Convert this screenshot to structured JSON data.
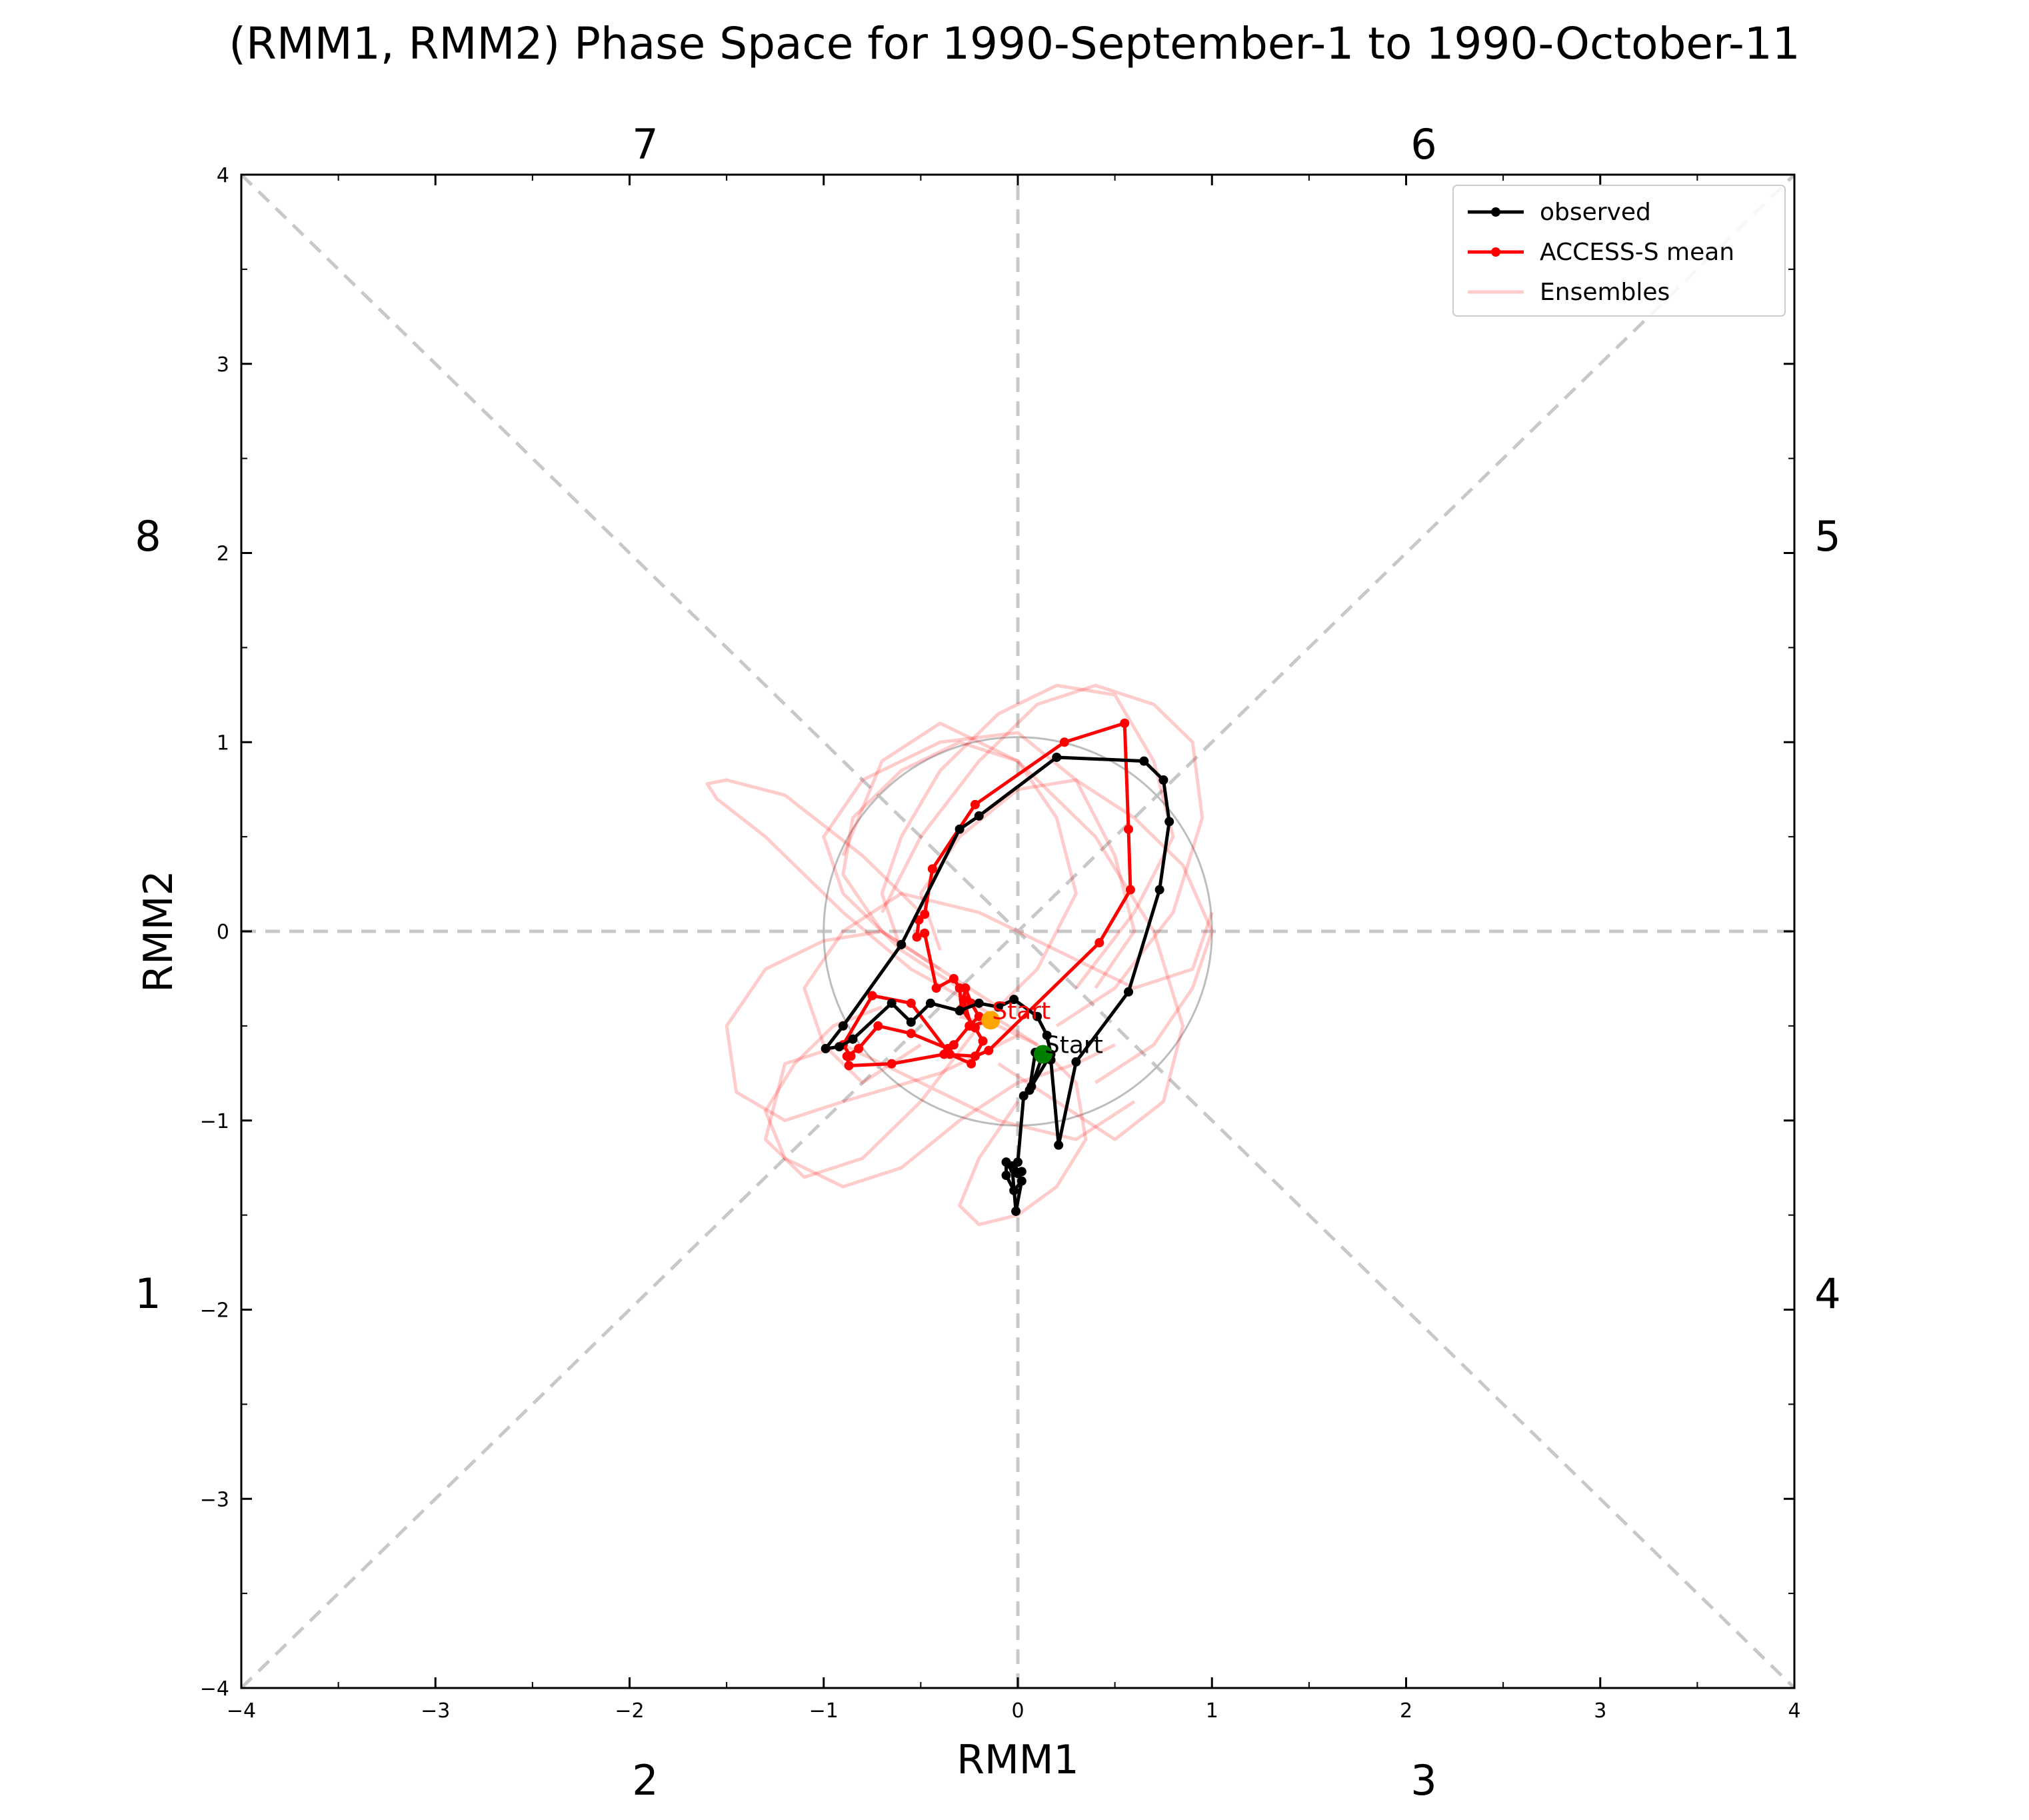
{
  "chart_data": {
    "type": "line",
    "title": "(RMM1, RMM2) Phase Space for 1990-September-1 to 1990-October-11",
    "xlabel": "RMM1",
    "ylabel": "RMM2",
    "xlim": [
      -4,
      4
    ],
    "ylim": [
      -4,
      4
    ],
    "x_ticks": [
      "−4",
      "−3",
      "−2",
      "−1",
      "0",
      "1",
      "2",
      "3",
      "4"
    ],
    "y_ticks": [
      "−4",
      "−3",
      "−2",
      "−1",
      "0",
      "1",
      "2",
      "3",
      "4"
    ],
    "grid": false,
    "legend_position": "top-right",
    "phase_labels": [
      {
        "label": "1",
        "position": "left-lower"
      },
      {
        "label": "2",
        "position": "bottom-left"
      },
      {
        "label": "3",
        "position": "bottom-right"
      },
      {
        "label": "4",
        "position": "right-lower"
      },
      {
        "label": "5",
        "position": "right-upper"
      },
      {
        "label": "6",
        "position": "top-right"
      },
      {
        "label": "7",
        "position": "top-left"
      },
      {
        "label": "8",
        "position": "left-upper"
      }
    ],
    "unit_circle_radius": 1,
    "series": [
      {
        "name": "observed",
        "color": "#000000",
        "start_label": "Start",
        "start_color": "#008000",
        "x": [
          0.13,
          0.07,
          0.17,
          0.15,
          0.1,
          -0.02,
          -0.1,
          -0.2,
          -0.3,
          -0.45,
          -0.55,
          -0.65,
          -0.85,
          -0.92,
          -0.99,
          -0.9,
          -0.6,
          -0.3,
          -0.2,
          0.2,
          0.65,
          0.75,
          0.78,
          0.73,
          0.57,
          0.3,
          0.21,
          0.17,
          0.09,
          0.06,
          0.03,
          0.0,
          -0.03,
          -0.01,
          0.02,
          -0.02,
          -0.06,
          -0.06,
          -0.02,
          0.02,
          0.0
        ],
        "y": [
          -0.65,
          -0.82,
          -0.65,
          -0.55,
          -0.45,
          -0.36,
          -0.4,
          -0.38,
          -0.42,
          -0.38,
          -0.48,
          -0.38,
          -0.57,
          -0.61,
          -0.62,
          -0.5,
          -0.07,
          0.54,
          0.61,
          0.92,
          0.9,
          0.8,
          0.58,
          0.22,
          -0.32,
          -0.69,
          -1.13,
          -0.68,
          -0.64,
          -0.84,
          -0.87,
          -1.22,
          -1.24,
          -1.48,
          -1.32,
          -1.37,
          -1.29,
          -1.22,
          -1.26,
          -1.27,
          -1.28
        ]
      },
      {
        "name": "ACCESS-S mean",
        "color": "#ff0000",
        "start_label": "Start",
        "start_color": "#ffa500",
        "x": [
          -0.14,
          -0.24,
          -0.28,
          -0.27,
          -0.24,
          -0.2,
          -0.25,
          -0.33,
          -0.36,
          -0.55,
          -0.72,
          -0.82,
          -0.88,
          -0.87,
          -0.65,
          -0.38,
          -0.22,
          -0.15,
          0.42,
          0.58,
          0.57,
          0.55,
          0.24,
          -0.22,
          -0.44,
          -0.48,
          -0.51,
          -0.52,
          -0.48,
          -0.42,
          -0.33,
          -0.3,
          -0.29,
          -0.22,
          -0.18,
          -0.24,
          -0.35,
          -0.55,
          -0.75,
          -0.9,
          -0.86
        ],
        "y": [
          -0.47,
          -0.5,
          -0.36,
          -0.3,
          -0.38,
          -0.45,
          -0.5,
          -0.6,
          -0.62,
          -0.54,
          -0.5,
          -0.62,
          -0.66,
          -0.71,
          -0.7,
          -0.65,
          -0.66,
          -0.63,
          -0.06,
          0.22,
          0.54,
          1.1,
          1.0,
          0.67,
          0.33,
          0.09,
          0.06,
          -0.03,
          -0.01,
          -0.3,
          -0.25,
          -0.3,
          -0.41,
          -0.51,
          -0.58,
          -0.7,
          -0.65,
          -0.38,
          -0.34,
          -0.6,
          -0.66
        ]
      },
      {
        "name": "Ensembles",
        "color": "#ff0000",
        "opacity": 0.2,
        "members": [
          {
            "x": [
              0.1,
              -0.2,
              -0.55,
              -0.9,
              -1.3,
              -1.55,
              -1.6,
              -1.5,
              -1.2,
              -0.8,
              -0.5
            ],
            "y": [
              -0.6,
              -0.4,
              -0.2,
              0.1,
              0.5,
              0.7,
              0.78,
              0.8,
              0.72,
              0.4,
              0.1
            ]
          },
          {
            "x": [
              0.0,
              -0.4,
              -0.9,
              -1.2,
              -1.45,
              -1.5,
              -1.3,
              -1.0,
              -0.7,
              -0.4,
              -0.1
            ],
            "y": [
              -0.55,
              -0.75,
              -0.9,
              -1.0,
              -0.85,
              -0.5,
              -0.2,
              -0.05,
              0.0,
              -0.2,
              -0.4
            ]
          },
          {
            "x": [
              -0.1,
              0.2,
              0.5,
              0.75,
              0.85,
              0.7,
              0.4,
              0.0,
              -0.4,
              -0.7,
              -0.9
            ],
            "y": [
              -0.7,
              -0.9,
              -1.1,
              -0.9,
              -0.5,
              0.0,
              0.5,
              0.9,
              1.1,
              0.9,
              0.4
            ]
          },
          {
            "x": [
              -0.2,
              -0.5,
              -0.8,
              -1.1,
              -1.3,
              -1.2,
              -0.9,
              -0.5,
              -0.1,
              0.3,
              0.6
            ],
            "y": [
              -0.5,
              -0.9,
              -1.2,
              -1.3,
              -1.1,
              -0.7,
              -0.6,
              -0.8,
              -1.0,
              -1.1,
              -0.9
            ]
          },
          {
            "x": [
              0.2,
              0.5,
              0.8,
              0.95,
              0.9,
              0.7,
              0.4,
              0.1,
              -0.2,
              -0.5,
              -0.7
            ],
            "y": [
              -0.5,
              -0.3,
              0.1,
              0.6,
              1.0,
              1.2,
              1.3,
              1.2,
              0.9,
              0.5,
              0.1
            ]
          },
          {
            "x": [
              -0.3,
              -0.6,
              -0.9,
              -1.0,
              -0.8,
              -0.4,
              0.0,
              0.3,
              0.5,
              0.6,
              0.4
            ],
            "y": [
              -0.3,
              -0.1,
              0.2,
              0.5,
              0.8,
              1.0,
              1.05,
              0.8,
              0.4,
              0.0,
              -0.3
            ]
          },
          {
            "x": [
              0.0,
              -0.2,
              -0.3,
              -0.2,
              0.0,
              0.2,
              0.35,
              0.3,
              0.1,
              -0.1,
              -0.3
            ],
            "y": [
              -0.9,
              -1.2,
              -1.45,
              -1.55,
              -1.5,
              -1.35,
              -1.1,
              -0.8,
              -0.6,
              -0.5,
              -0.45
            ]
          },
          {
            "x": [
              -0.5,
              -0.8,
              -1.0,
              -1.1,
              -0.9,
              -0.6,
              -0.2,
              0.2,
              0.6,
              0.9,
              1.0
            ],
            "y": [
              -0.6,
              -0.8,
              -0.6,
              -0.3,
              0.0,
              0.2,
              0.1,
              -0.1,
              -0.3,
              -0.2,
              0.1
            ]
          },
          {
            "x": [
              0.3,
              0.6,
              0.8,
              0.7,
              0.5,
              0.2,
              -0.1,
              -0.4,
              -0.6,
              -0.7,
              -0.6
            ],
            "y": [
              -0.3,
              0.1,
              0.5,
              0.9,
              1.25,
              1.3,
              1.15,
              0.85,
              0.5,
              0.2,
              -0.1
            ]
          },
          {
            "x": [
              -0.7,
              -0.95,
              -1.15,
              -1.3,
              -1.2,
              -0.9,
              -0.6,
              -0.3,
              0.0,
              0.3,
              0.5
            ],
            "y": [
              -0.4,
              -0.5,
              -0.7,
              -0.95,
              -1.2,
              -1.35,
              -1.25,
              -1.0,
              -0.8,
              -0.7,
              -0.6
            ]
          },
          {
            "x": [
              0.4,
              0.7,
              0.9,
              1.0,
              0.85,
              0.6,
              0.3,
              0.0,
              -0.3,
              -0.5,
              -0.4
            ],
            "y": [
              -0.8,
              -0.6,
              -0.3,
              0.0,
              0.35,
              0.6,
              0.8,
              0.75,
              0.5,
              0.2,
              -0.1
            ]
          },
          {
            "x": [
              -0.4,
              -0.7,
              -0.9,
              -0.85,
              -0.6,
              -0.3,
              0.0,
              0.2,
              0.3,
              0.1,
              -0.2
            ],
            "y": [
              -0.2,
              0.0,
              0.3,
              0.6,
              0.85,
              1.0,
              0.9,
              0.6,
              0.2,
              -0.2,
              -0.5
            ]
          }
        ]
      }
    ]
  }
}
